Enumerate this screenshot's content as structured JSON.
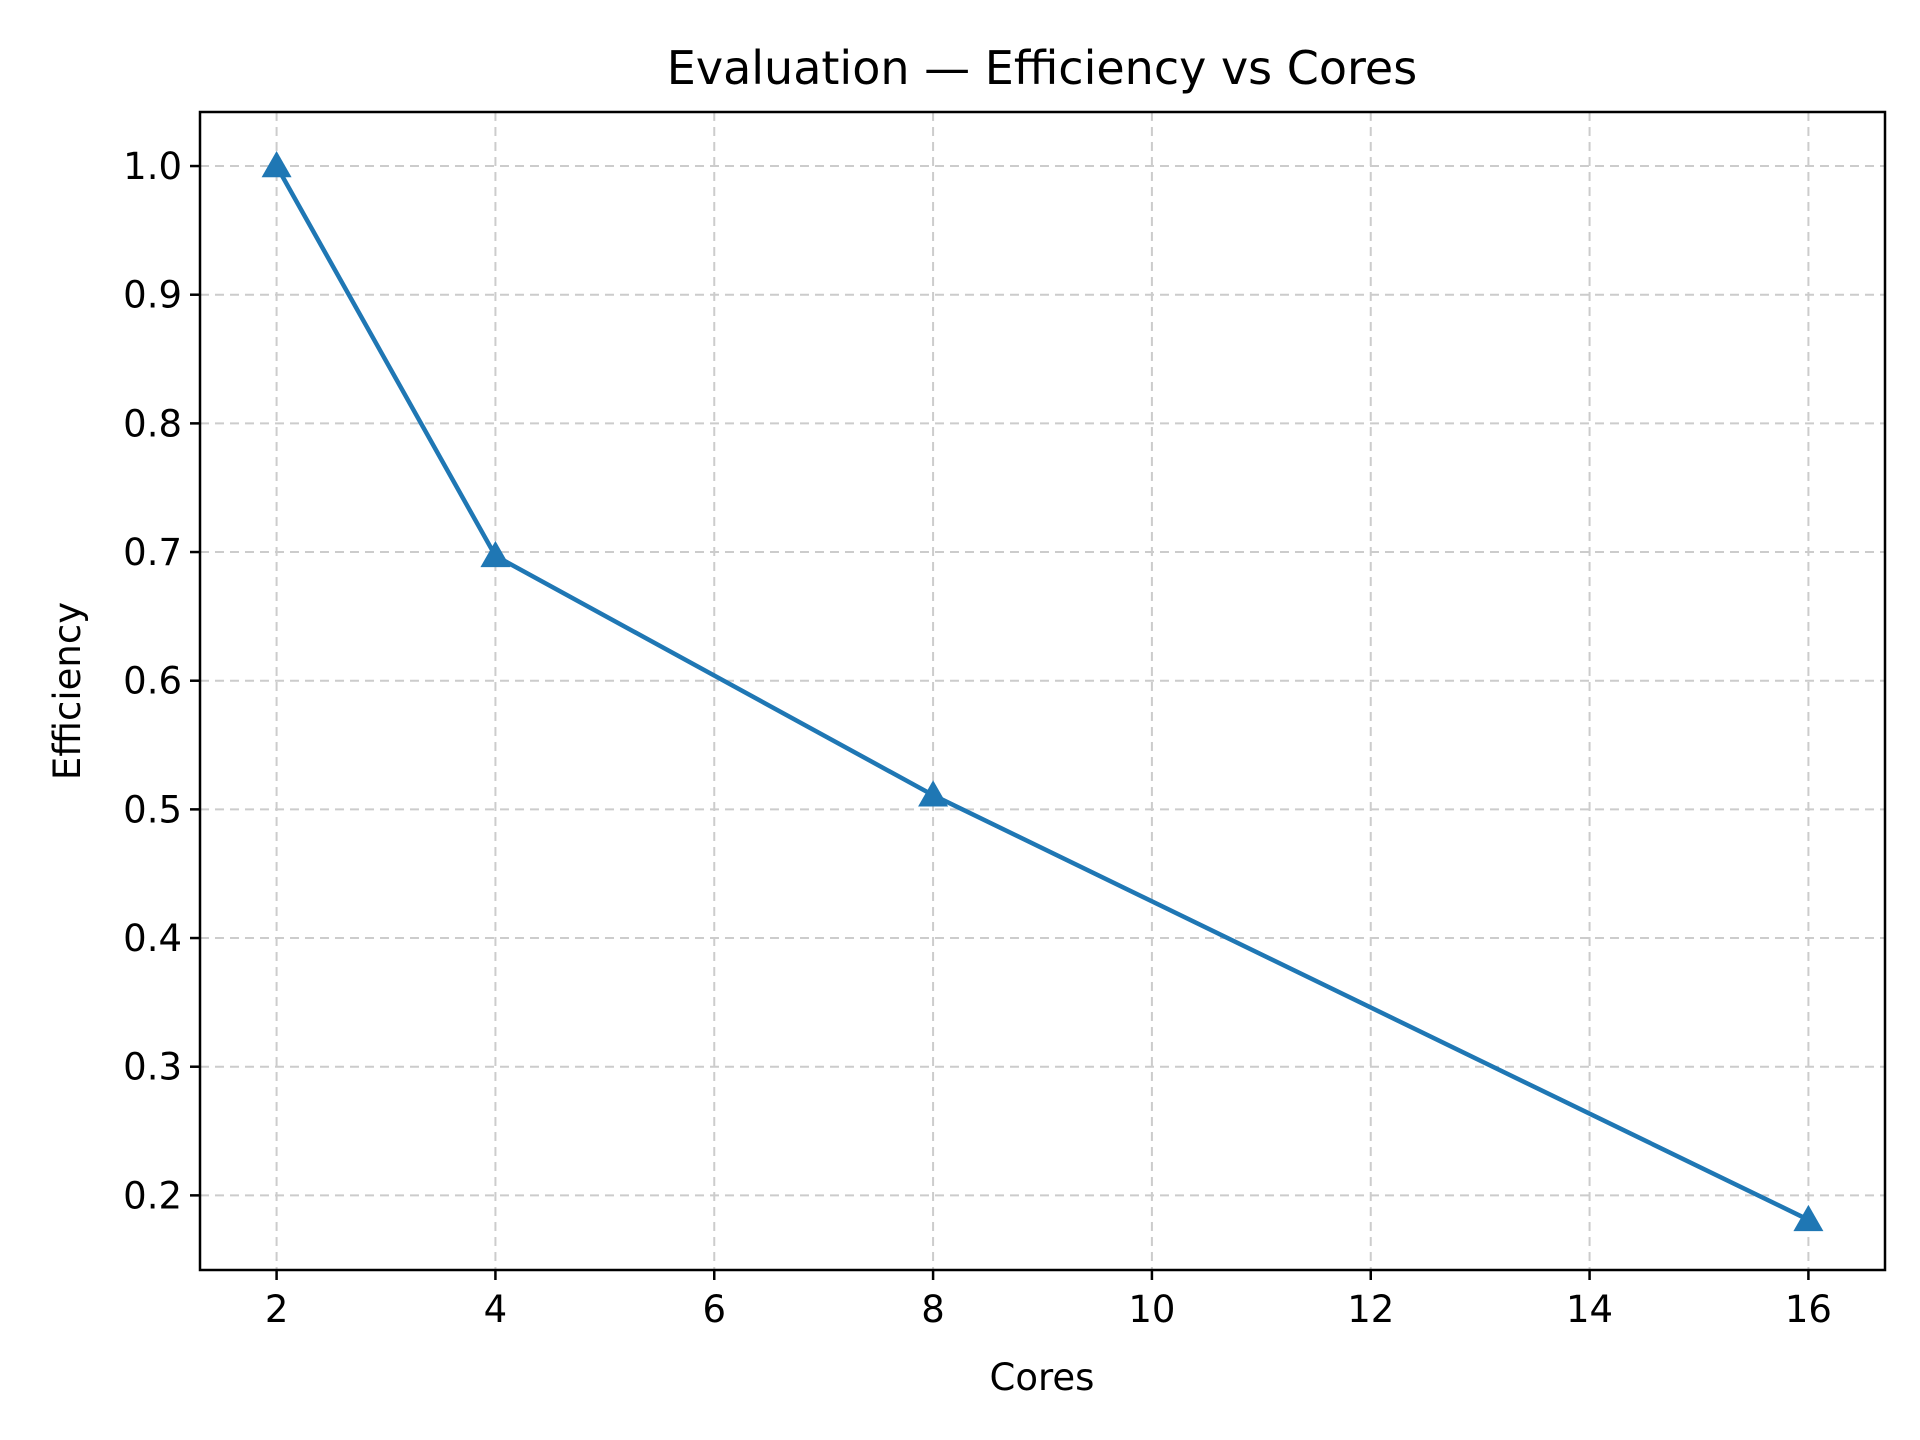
{
  "chart_data": {
    "type": "line",
    "title": "Evaluation — Efficiency vs Cores",
    "xlabel": "Cores",
    "ylabel": "Efficiency",
    "xlim": [
      1.3,
      16.7
    ],
    "ylim": [
      0.142,
      1.042
    ],
    "xticks": [
      2,
      4,
      6,
      8,
      10,
      12,
      14,
      16
    ],
    "yticks": [
      0.2,
      0.3,
      0.4,
      0.5,
      0.6,
      0.7,
      0.8,
      0.9,
      1.0
    ],
    "grid": true,
    "color": "#1f77b4",
    "marker": "triangle",
    "series": [
      {
        "x": [
          2,
          4,
          8,
          16
        ],
        "values": [
          1.0,
          0.697,
          0.511,
          0.181
        ]
      }
    ]
  }
}
